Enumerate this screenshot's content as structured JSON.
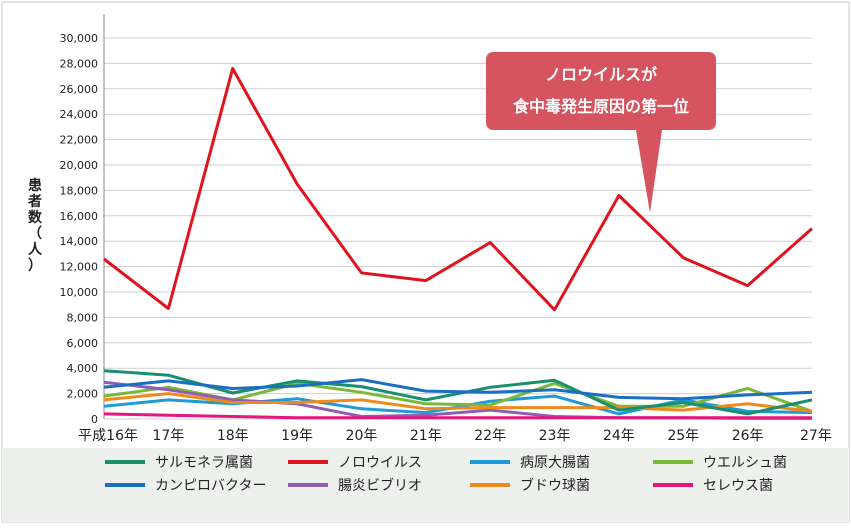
{
  "chart_data": {
    "type": "line",
    "ylabel": "患者数（人）",
    "ylim": [
      0,
      30000
    ],
    "yticks": [
      "0",
      "2,000",
      "4,000",
      "6,000",
      "8,000",
      "10,000",
      "12,000",
      "14,000",
      "16,000",
      "18,000",
      "20,000",
      "22,000",
      "24,000",
      "26,000",
      "28,000",
      "30,000"
    ],
    "categories": [
      "平成16年",
      "17年",
      "18年",
      "19年",
      "20年",
      "21年",
      "22年",
      "23年",
      "24年",
      "25年",
      "26年",
      "27年"
    ],
    "grid": true,
    "legend_position": "bottom",
    "annotation": {
      "line1": "ノロウイルスが",
      "line2": "食中毒発生原因の第一位"
    },
    "series": [
      {
        "name": "サルモネラ属菌",
        "color": "#1a8f6e",
        "values": [
          3800,
          3450,
          2050,
          3000,
          2550,
          1500,
          2500,
          3050,
          700,
          1300,
          400,
          1500
        ]
      },
      {
        "name": "ノロウイルス",
        "color": "#e0141e",
        "values": [
          12600,
          8700,
          27600,
          18500,
          11500,
          10900,
          13900,
          8600,
          17600,
          12700,
          10500,
          15000
        ]
      },
      {
        "name": "病原大腸菌",
        "color": "#1e9ad8",
        "values": [
          1000,
          1500,
          1200,
          1600,
          800,
          500,
          1400,
          1800,
          400,
          1500,
          600,
          500
        ]
      },
      {
        "name": "ウエルシュ菌",
        "color": "#7ab83a",
        "values": [
          1800,
          2500,
          1500,
          2800,
          2100,
          1200,
          1100,
          2800,
          1000,
          1000,
          2400,
          600
        ]
      },
      {
        "name": "カンピロバクター",
        "color": "#1a6fc2",
        "values": [
          2500,
          3000,
          2400,
          2600,
          3100,
          2200,
          2100,
          2300,
          1700,
          1600,
          1900,
          2100
        ]
      },
      {
        "name": "腸炎ビブリオ",
        "color": "#8e5fb0",
        "values": [
          2900,
          2300,
          1500,
          1200,
          200,
          300,
          700,
          200,
          100,
          100,
          50,
          50
        ]
      },
      {
        "name": "ブドウ球菌",
        "color": "#ee8a1c",
        "values": [
          1500,
          2000,
          1300,
          1300,
          1500,
          800,
          900,
          900,
          900,
          700,
          1200,
          600
        ]
      },
      {
        "name": "セレウス菌",
        "color": "#e3177e",
        "values": [
          400,
          300,
          200,
          100,
          100,
          100,
          100,
          100,
          100,
          100,
          100,
          100
        ]
      }
    ]
  }
}
